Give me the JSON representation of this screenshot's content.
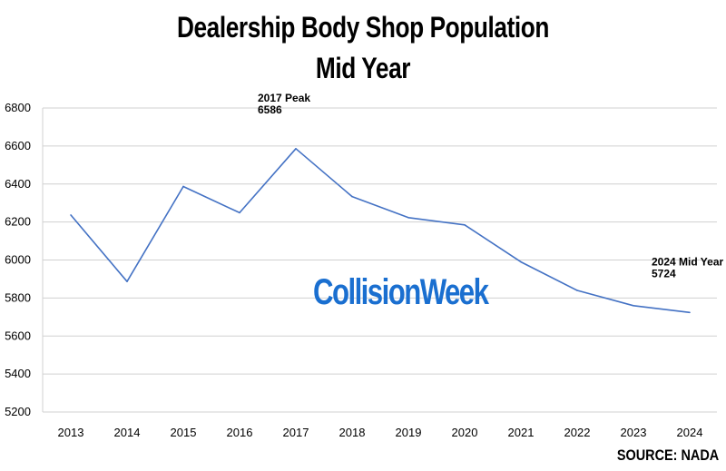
{
  "chart_data": {
    "type": "line",
    "title": "Dealership Body Shop Population",
    "subtitle": "Mid Year",
    "x": [
      "2013",
      "2014",
      "2015",
      "2016",
      "2017",
      "2018",
      "2019",
      "2020",
      "2021",
      "2022",
      "2023",
      "2024"
    ],
    "series": [
      {
        "values": [
          6237,
          5887,
          6387,
          6249,
          6586,
          6334,
          6223,
          6185,
          5990,
          5840,
          5760,
          5724
        ],
        "color": "#4472c4"
      }
    ],
    "ylim": [
      5200,
      6800
    ],
    "yticks": [
      "5200",
      "5400",
      "5600",
      "5800",
      "6000",
      "6200",
      "6400",
      "6600",
      "6800"
    ],
    "grid": true,
    "annotations": [
      {
        "x": "2017",
        "lines": [
          "2017 Peak",
          "6586"
        ]
      },
      {
        "x": "2024",
        "lines": [
          "2024 Mid Year",
          "5724"
        ]
      }
    ]
  },
  "watermark": "CollisionWeek",
  "source": "SOURCE: NADA"
}
